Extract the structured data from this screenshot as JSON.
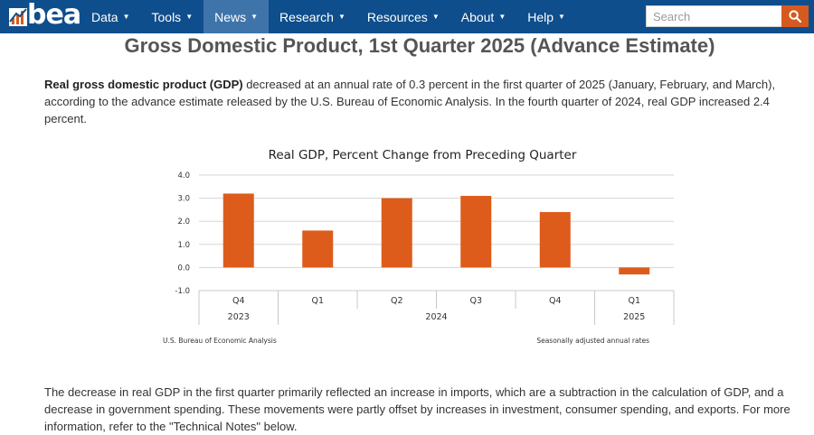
{
  "nav": {
    "logo_text": "bea",
    "items": [
      {
        "label": "Data",
        "active": false
      },
      {
        "label": "Tools",
        "active": false
      },
      {
        "label": "News",
        "active": true
      },
      {
        "label": "Research",
        "active": false
      },
      {
        "label": "Resources",
        "active": false
      },
      {
        "label": "About",
        "active": false
      },
      {
        "label": "Help",
        "active": false
      }
    ],
    "search": {
      "placeholder": "Search",
      "value": "",
      "icon": "search-icon"
    },
    "colors": {
      "bar": "#0f4e8c",
      "active": "#3f74aa",
      "search_button": "#d65a1f"
    }
  },
  "page": {
    "title": "Gross Domestic Product, 1st Quarter 2025 (Advance Estimate)",
    "para1_bold": "Real gross domestic product (GDP)",
    "para1_rest": " decreased at an annual rate of 0.3 percent in the first quarter of 2025 (January, February, and March), according to the advance estimate released by the U.S. Bureau of Economic Analysis. In the fourth quarter of 2024, real GDP increased 2.4 percent.",
    "para2": "The decrease in real GDP in the first quarter primarily reflected an increase in imports, which are a subtraction in the calculation of GDP, and a decrease in government spending. These movements were partly offset by increases in investment, consumer spending, and exports. For more information, refer to the \"Technical Notes\" below."
  },
  "chart_data": {
    "type": "bar",
    "title": "Real GDP, Percent Change from Preceding Quarter",
    "categories": [
      "Q4",
      "Q1",
      "Q2",
      "Q3",
      "Q4",
      "Q1"
    ],
    "years": [
      {
        "label": "2023",
        "span": [
          0,
          0
        ]
      },
      {
        "label": "2024",
        "span": [
          1,
          4
        ]
      },
      {
        "label": "2025",
        "span": [
          5,
          5
        ]
      }
    ],
    "values": [
      3.2,
      1.6,
      3.0,
      3.1,
      2.4,
      -0.3
    ],
    "yticks": [
      4.0,
      3.0,
      2.0,
      1.0,
      0.0,
      -1.0
    ],
    "ylim": [
      -1,
      4
    ],
    "grid": true,
    "bar_color": "#dd5c1b",
    "source_note": "U.S. Bureau of Economic Analysis",
    "rate_note": "Seasonally adjusted annual rates"
  }
}
